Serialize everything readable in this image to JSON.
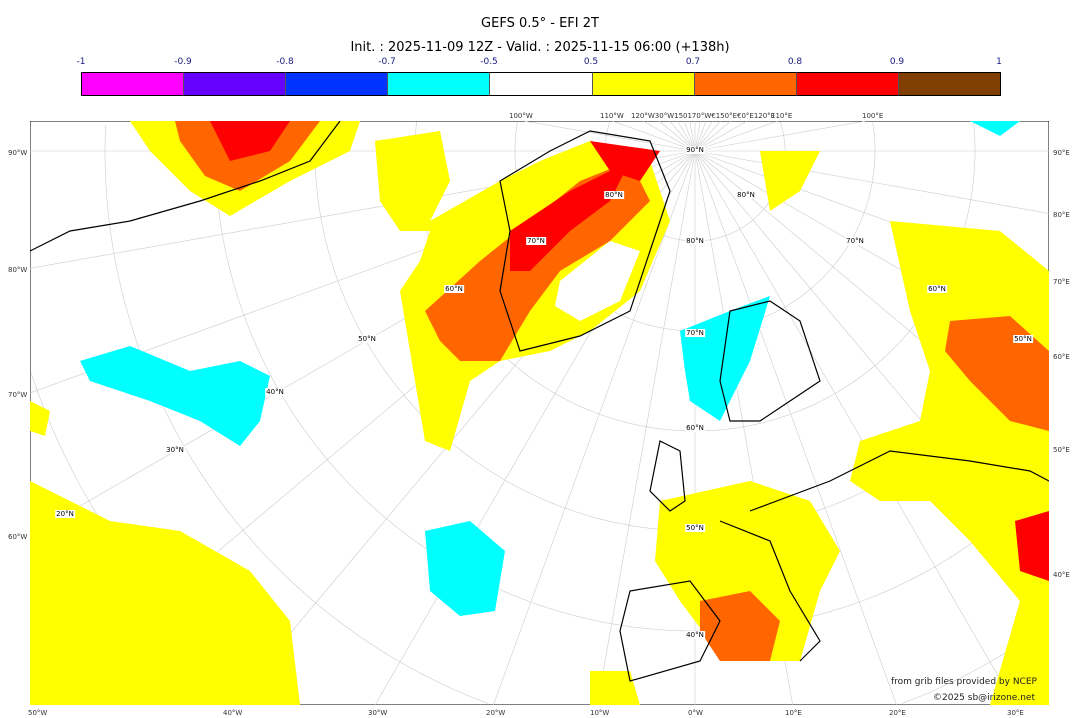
{
  "title": "GEFS 0.5° - EFI 2T",
  "subtitle": "Init. : 2025-11-09 12Z - Valid. : 2025-11-15 06:00 (+138h)",
  "colorbar": {
    "ticks": [
      "-1",
      "-0.9",
      "-0.8",
      "-0.7",
      "-0.5",
      "0.5",
      "0.7",
      "0.8",
      "0.9",
      "1"
    ],
    "colors": [
      "#ff00ff",
      "#6600ff",
      "#0033ff",
      "#00ffff",
      "#ffffff",
      "#ffff00",
      "#ff6600",
      "#ff0000",
      "#803f00"
    ]
  },
  "axes": {
    "left": [
      "90°W",
      "80°W",
      "70°W",
      "60°W"
    ],
    "right": [
      "90°E",
      "80°E",
      "70°E",
      "60°E",
      "50°E",
      "40°E"
    ],
    "bottom": [
      "50°W",
      "40°W",
      "30°W",
      "20°W",
      "10°W",
      "0°W",
      "10°E",
      "20°E",
      "30°E"
    ],
    "top": [
      "100°W",
      "110°W",
      "120°W30°W150170°W€150°E€0°E120°E",
      "110°E",
      "100°E"
    ]
  },
  "lat_labels": [
    "90°N",
    "80°N",
    "70°N",
    "60°N",
    "50°N",
    "40°N",
    "80°N",
    "70°N",
    "60°N",
    "50°N",
    "40°N",
    "30°N",
    "20°N",
    "80°N",
    "70°N",
    "60°N",
    "50°N"
  ],
  "credits": {
    "line1": "from grib files provided by NCEP",
    "line2": "©2025 sb@irizone.net"
  }
}
